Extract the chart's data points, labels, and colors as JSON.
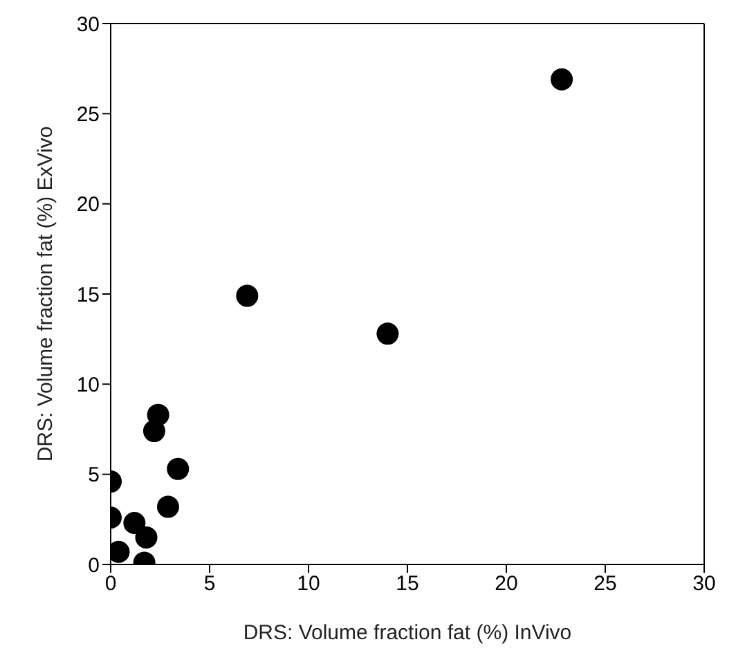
{
  "chart_data": {
    "type": "scatter",
    "xlabel": "DRS: Volume fraction fat (%) InVivo",
    "ylabel": "DRS: Volume fraction fat (%) ExVivo",
    "x": [
      22.8,
      6.9,
      14,
      2.4,
      2.2,
      3.4,
      2.9,
      0,
      0,
      1.2,
      1.8,
      0.4,
      1.7
    ],
    "series": [
      {
        "color": "#000000",
        "values": [
          26.9,
          14.9,
          12.8,
          8.3,
          7.4,
          5.3,
          3.2,
          4.6,
          2.6,
          2.3,
          1.5,
          0.7,
          0.1
        ]
      }
    ],
    "xlim": [
      0,
      30
    ],
    "ylim": [
      0,
      30
    ],
    "xticks": [
      0,
      5,
      10,
      15,
      20,
      25,
      30
    ],
    "yticks": [
      0,
      5,
      10,
      15,
      20,
      25,
      30
    ],
    "marker": "circle",
    "grid": false,
    "legend": false
  }
}
